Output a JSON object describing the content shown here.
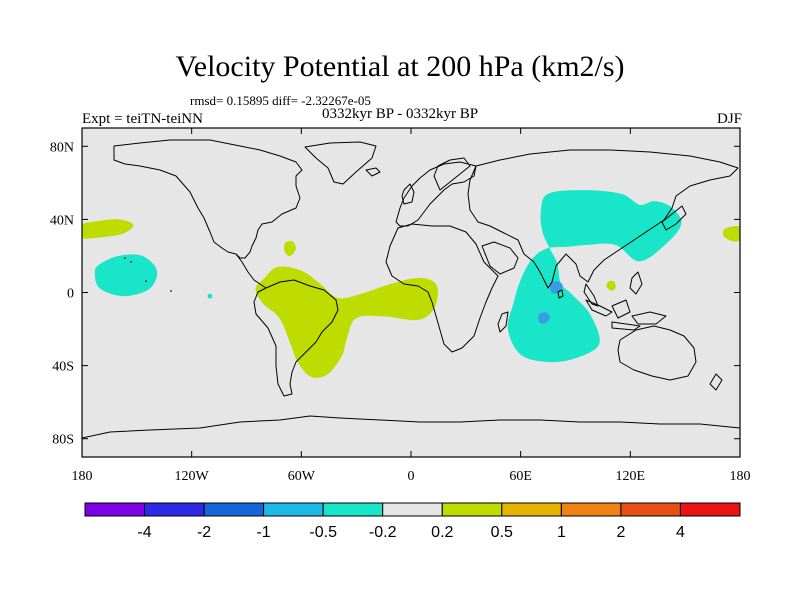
{
  "title": "Velocity Potential at 200 hPa (km2/s)",
  "stats": "rmsd= 0.15895 diff= -2.32267e-05",
  "left_label": "Expt = teiTN-teiNN",
  "center_label": "0332kyr BP - 0332kyr BP",
  "right_label": "DJF",
  "chart_data": {
    "type": "heatmap",
    "title": "Velocity Potential at 200 hPa (km2/s)",
    "subtitle": "0332kyr BP - 0332kyr BP",
    "projection": "cylindrical-equidistant",
    "xlim": [
      -180,
      180
    ],
    "ylim": [
      -90,
      90
    ],
    "x_ticks": [
      {
        "value": -180,
        "label": "180"
      },
      {
        "value": -120,
        "label": "120W"
      },
      {
        "value": -60,
        "label": "60W"
      },
      {
        "value": 0,
        "label": "0"
      },
      {
        "value": 60,
        "label": "60E"
      },
      {
        "value": 120,
        "label": "120E"
      },
      {
        "value": 180,
        "label": "180"
      }
    ],
    "y_ticks": [
      {
        "value": 80,
        "label": "80N"
      },
      {
        "value": 40,
        "label": "40N"
      },
      {
        "value": 0,
        "label": "0"
      },
      {
        "value": -40,
        "label": "40S"
      },
      {
        "value": -80,
        "label": "80S"
      }
    ],
    "background_color": "#e6e6e6",
    "contour_regions": [
      {
        "name": "tropical-asia-indian-ocean",
        "level": "-0.5 to -0.2",
        "color": "#19e6c8",
        "outline": [
          [
            75,
            54
          ],
          [
            95,
            56
          ],
          [
            115,
            54
          ],
          [
            125,
            48
          ],
          [
            133,
            50
          ],
          [
            142,
            47
          ],
          [
            148,
            38
          ],
          [
            140,
            27
          ],
          [
            125,
            17
          ],
          [
            112,
            26
          ],
          [
            96,
            26
          ],
          [
            86,
            25
          ],
          [
            74,
            24
          ],
          [
            66,
            18
          ],
          [
            60,
            7
          ],
          [
            56,
            -6
          ],
          [
            53,
            -20
          ],
          [
            60,
            -34
          ],
          [
            75,
            -38
          ],
          [
            90,
            -36
          ],
          [
            103,
            -28
          ],
          [
            98,
            -12
          ],
          [
            88,
            -1
          ],
          [
            82,
            5
          ],
          [
            80,
            16
          ],
          [
            76,
            24
          ],
          [
            72,
            33
          ],
          [
            71,
            44
          ]
        ]
      },
      {
        "name": "central-pacific",
        "level": "-0.5 to -0.2",
        "color": "#19e6c8",
        "outline": [
          [
            -171,
            15
          ],
          [
            -160,
            20
          ],
          [
            -147,
            20
          ],
          [
            -139,
            12
          ],
          [
            -143,
            2
          ],
          [
            -157,
            -2
          ],
          [
            -170,
            2
          ],
          [
            -173,
            10
          ]
        ]
      },
      {
        "name": "india-core",
        "level": "-1 to -0.5",
        "color": "#3c9be6",
        "outline": [
          [
            76,
            5
          ],
          [
            80,
            6
          ],
          [
            83,
            4
          ],
          [
            81,
            0
          ],
          [
            77,
            0
          ]
        ]
      },
      {
        "name": "indian-ocean-core",
        "level": "-1 to -0.5",
        "color": "#3c9be6",
        "outline": [
          [
            70,
            -12
          ],
          [
            74,
            -11
          ],
          [
            76,
            -14
          ],
          [
            73,
            -17
          ],
          [
            70,
            -16
          ]
        ]
      },
      {
        "name": "tiny-pacific-spot",
        "level": "-0.5 to -0.2",
        "color": "#19e6c8",
        "outline": [
          [
            -111,
            -1
          ],
          [
            -109,
            -1
          ],
          [
            -109,
            -3
          ],
          [
            -111,
            -3
          ]
        ]
      },
      {
        "name": "south-america-atlantic",
        "level": "0.2 to 0.5",
        "color": "#bedc00",
        "outline": [
          [
            -80,
            8
          ],
          [
            -73,
            14
          ],
          [
            -60,
            12
          ],
          [
            -50,
            5
          ],
          [
            -40,
            -3
          ],
          [
            -28,
            -1
          ],
          [
            -10,
            5
          ],
          [
            5,
            8
          ],
          [
            14,
            4
          ],
          [
            13,
            -8
          ],
          [
            4,
            -15
          ],
          [
            -15,
            -13
          ],
          [
            -30,
            -14
          ],
          [
            -35,
            -25
          ],
          [
            -38,
            -35
          ],
          [
            -46,
            -45
          ],
          [
            -55,
            -46
          ],
          [
            -62,
            -38
          ],
          [
            -66,
            -28
          ],
          [
            -72,
            -14
          ],
          [
            -81,
            -6
          ],
          [
            -85,
            2
          ]
        ]
      },
      {
        "name": "caribbean-spot",
        "level": "0.2 to 0.5",
        "color": "#bedc00",
        "outline": [
          [
            -69,
            27
          ],
          [
            -65,
            28
          ],
          [
            -63,
            24
          ],
          [
            -66,
            20
          ],
          [
            -69,
            22
          ]
        ]
      },
      {
        "name": "north-pacific-west",
        "level": "0.2 to 0.5",
        "color": "#bedc00",
        "outline": [
          [
            -180,
            37
          ],
          [
            -172,
            39
          ],
          [
            -160,
            40
          ],
          [
            -152,
            37
          ],
          [
            -158,
            32
          ],
          [
            -172,
            30
          ],
          [
            -180,
            30
          ]
        ]
      },
      {
        "name": "north-pacific-east",
        "level": "0.2 to 0.5",
        "color": "#bedc00",
        "outline": [
          [
            180,
            36
          ],
          [
            172,
            35
          ],
          [
            171,
            31
          ],
          [
            176,
            28
          ],
          [
            180,
            29
          ]
        ]
      },
      {
        "name": "philippine-spot",
        "level": "0.2 to 0.5",
        "color": "#bedc00",
        "outline": [
          [
            108,
            6
          ],
          [
            111,
            6
          ],
          [
            112,
            3
          ],
          [
            110,
            1
          ],
          [
            107,
            3
          ]
        ]
      }
    ],
    "colorbar": {
      "colors": [
        "#7d00e6",
        "#2d28e6",
        "#1464dc",
        "#1eb9e6",
        "#19e6c8",
        "#e6e6e6",
        "#bedc00",
        "#e6b400",
        "#f08214",
        "#e65014",
        "#eb1414"
      ],
      "labels": [
        "-4",
        "-2",
        "-1",
        "-0.5",
        "-0.2",
        "0.2",
        "0.5",
        "1",
        "2",
        "4"
      ]
    }
  }
}
